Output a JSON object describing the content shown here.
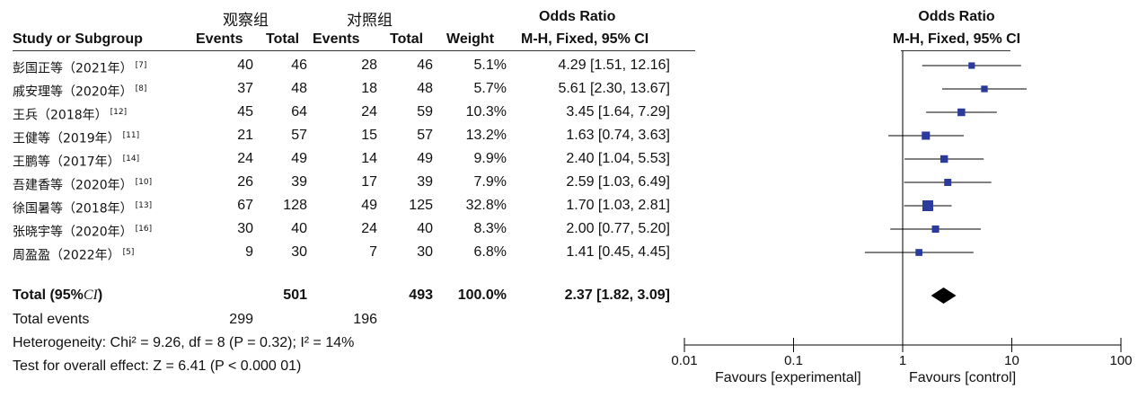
{
  "header": {
    "exp_group": "观察组",
    "ctrl_group": "对照组",
    "study_col": "Study or Subgroup",
    "events": "Events",
    "total": "Total",
    "events2": "Events",
    "total2": "Total",
    "weight": "Weight",
    "or_title": "Odds Ratio",
    "or_method": "M-H, Fixed, 95% CI",
    "plot_title": "Odds Ratio",
    "plot_method": "M-H, Fixed, 95% CI"
  },
  "chart_data": {
    "type": "forest",
    "scale": "log",
    "xlim": [
      0.01,
      100
    ],
    "ticks": [
      "0.01",
      "0.1",
      "1",
      "10",
      "100"
    ],
    "tick_values": [
      0.01,
      0.1,
      1,
      10,
      100
    ],
    "favours_left": "Favours [experimental]",
    "favours_right": "Favours [control]",
    "marker_color": "#2b3a9b",
    "studies": [
      {
        "name": "彭国正等（2021年）",
        "ref": "[7]",
        "e_events": "40",
        "e_total": "46",
        "c_events": "28",
        "c_total": "46",
        "weight": "5.1%",
        "or_text": "4.29 [1.51, 12.16]",
        "or": 4.29,
        "lo": 1.51,
        "hi": 12.16,
        "w": 5.1
      },
      {
        "name": "戚安理等（2020年）",
        "ref": "[8]",
        "e_events": "37",
        "e_total": "48",
        "c_events": "18",
        "c_total": "48",
        "weight": "5.7%",
        "or_text": "5.61 [2.30, 13.67]",
        "or": 5.61,
        "lo": 2.3,
        "hi": 13.67,
        "w": 5.7
      },
      {
        "name": "王兵（2018年）",
        "ref": "[12]",
        "e_events": "45",
        "e_total": "64",
        "c_events": "24",
        "c_total": "59",
        "weight": "10.3%",
        "or_text": "3.45 [1.64, 7.29]",
        "or": 3.45,
        "lo": 1.64,
        "hi": 7.29,
        "w": 10.3
      },
      {
        "name": "王健等（2019年）",
        "ref": "[11]",
        "e_events": "21",
        "e_total": "57",
        "c_events": "15",
        "c_total": "57",
        "weight": "13.2%",
        "or_text": "1.63 [0.74, 3.63]",
        "or": 1.63,
        "lo": 0.74,
        "hi": 3.63,
        "w": 13.2
      },
      {
        "name": "王鹏等（2017年）",
        "ref": "[14]",
        "e_events": "24",
        "e_total": "49",
        "c_events": "14",
        "c_total": "49",
        "weight": "9.9%",
        "or_text": "2.40 [1.04, 5.53]",
        "or": 2.4,
        "lo": 1.04,
        "hi": 5.53,
        "w": 9.9
      },
      {
        "name": "吾建香等（2020年）",
        "ref": "[10]",
        "e_events": "26",
        "e_total": "39",
        "c_events": "17",
        "c_total": "39",
        "weight": "7.9%",
        "or_text": "2.59 [1.03, 6.49]",
        "or": 2.59,
        "lo": 1.03,
        "hi": 6.49,
        "w": 7.9
      },
      {
        "name": "徐国暑等（2018年）",
        "ref": "[13]",
        "e_events": "67",
        "e_total": "128",
        "c_events": "49",
        "c_total": "125",
        "weight": "32.8%",
        "or_text": "1.70 [1.03, 2.81]",
        "or": 1.7,
        "lo": 1.03,
        "hi": 2.81,
        "w": 32.8
      },
      {
        "name": "张晓宇等（2020年）",
        "ref": "[16]",
        "e_events": "30",
        "e_total": "40",
        "c_events": "24",
        "c_total": "40",
        "weight": "8.3%",
        "or_text": "2.00 [0.77, 5.20]",
        "or": 2.0,
        "lo": 0.77,
        "hi": 5.2,
        "w": 8.3
      },
      {
        "name": "周盈盈（2022年）",
        "ref": "[5]",
        "e_events": "9",
        "e_total": "30",
        "c_events": "7",
        "c_total": "30",
        "weight": "6.8%",
        "or_text": "1.41 [0.45, 4.45]",
        "or": 1.41,
        "lo": 0.45,
        "hi": 4.45,
        "w": 6.8
      }
    ],
    "total": {
      "label": "Total (95%",
      "ci": "CI",
      "e_total": "501",
      "c_total": "493",
      "weight": "100.0%",
      "or_text": "2.37 [1.82, 3.09]",
      "or": 2.37,
      "lo": 1.82,
      "hi": 3.09
    }
  },
  "footer": {
    "total_events_label": "Total events",
    "e_events": "299",
    "c_events": "196",
    "heterogeneity": "Heterogeneity: Chi² = 9.26, df = 8 (P = 0.32); I² = 14%",
    "overall": "Test for overall effect: Z = 6.41 (P < 0.000 01)"
  }
}
